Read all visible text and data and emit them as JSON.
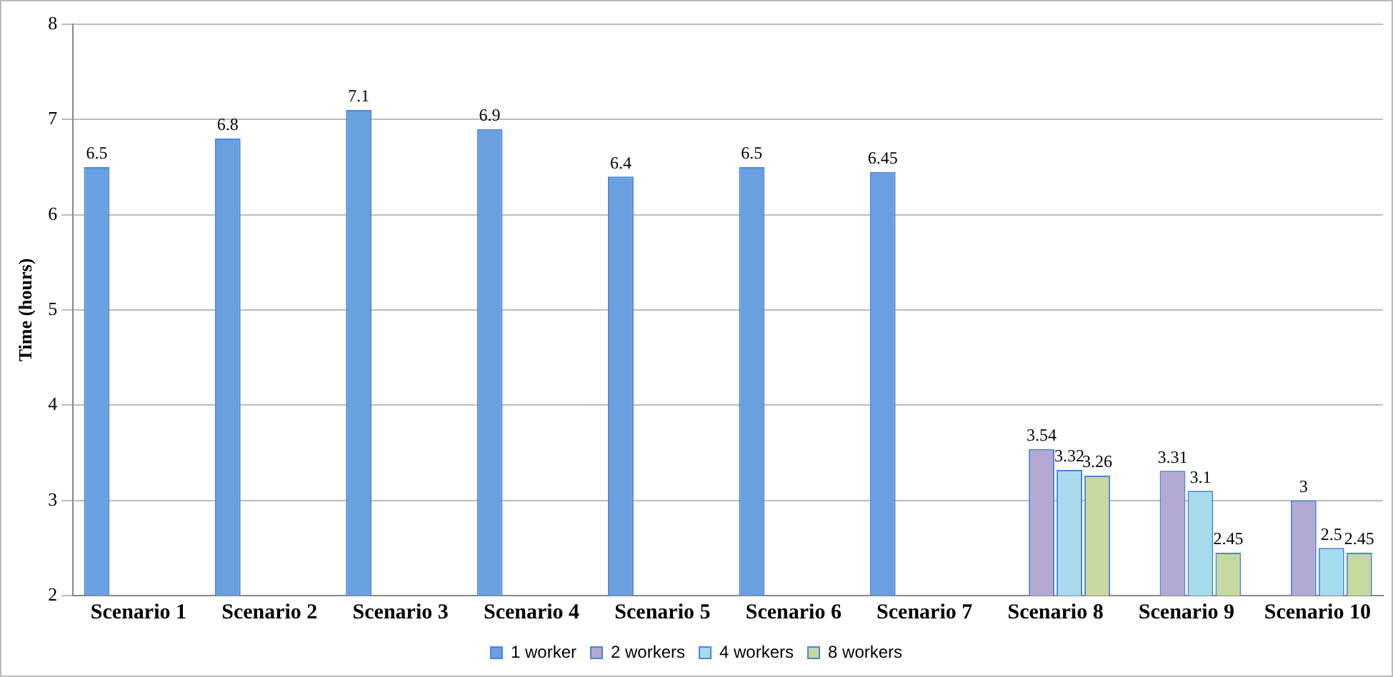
{
  "chart_data": {
    "type": "bar",
    "ylabel": "Time (hours)",
    "categories": [
      "Scenario 1",
      "Scenario 2",
      "Scenario 3",
      "Scenario 4",
      "Scenario 5",
      "Scenario 6",
      "Scenario 7",
      "Scenario 8",
      "Scenario 9",
      "Scenario 10"
    ],
    "series": [
      {
        "name": "1 worker",
        "color": "#6a9fe0",
        "values": [
          6.5,
          6.8,
          7.1,
          6.9,
          6.4,
          6.5,
          6.45,
          null,
          null,
          null
        ]
      },
      {
        "name": "2 workers",
        "color": "#b4a9d2",
        "values": [
          null,
          null,
          null,
          null,
          null,
          null,
          null,
          3.54,
          3.31,
          3
        ]
      },
      {
        "name": "4 workers",
        "color": "#a6dcee",
        "values": [
          null,
          null,
          null,
          null,
          null,
          null,
          null,
          3.32,
          3.1,
          2.5
        ]
      },
      {
        "name": "8 workers",
        "color": "#c8d9a0",
        "values": [
          null,
          null,
          null,
          null,
          null,
          null,
          null,
          3.26,
          2.45,
          2.45
        ]
      }
    ],
    "ylim": [
      2,
      8
    ],
    "yticks": [
      2,
      3,
      4,
      5,
      6,
      7,
      8
    ],
    "grid": "y",
    "legend": "bottom",
    "data_labels": true
  }
}
